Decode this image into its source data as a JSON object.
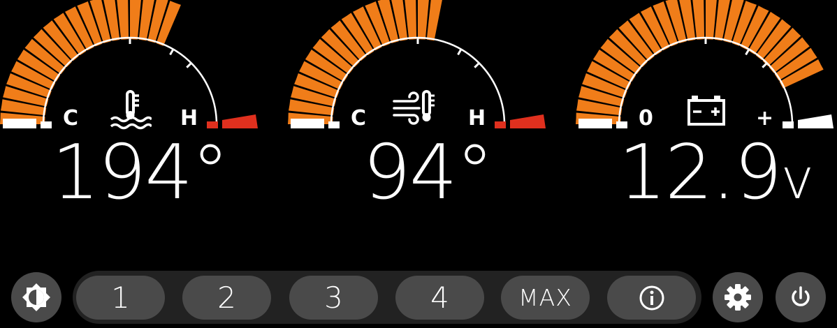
{
  "gauges": [
    {
      "name": "coolant-temperature",
      "icon": "coolant-temperature-icon",
      "left_label": "C",
      "right_label": "H",
      "value": "194",
      "unit": "°",
      "level": 0.62,
      "right_zone_color": "#e0301e"
    },
    {
      "name": "intake-air-temperature",
      "icon": "air-temperature-icon",
      "left_label": "C",
      "right_label": "H",
      "value": "94",
      "unit": "°",
      "level": 0.54,
      "right_zone_color": "#e0301e"
    },
    {
      "name": "battery-voltage",
      "icon": "battery-icon",
      "left_label": "0",
      "right_label": "+",
      "value": "12.9",
      "unit": "v",
      "level": 0.86,
      "right_zone_color": "#ffffff"
    }
  ],
  "colors": {
    "fill": "#f07d19",
    "background": "#000000",
    "button": "#4a4a4a",
    "track": "#222222"
  },
  "bottom_bar": {
    "brightness_icon": "brightness-icon",
    "presets": [
      {
        "label": "1"
      },
      {
        "label": "2"
      },
      {
        "label": "3"
      },
      {
        "label": "4"
      },
      {
        "label": "MAX"
      }
    ],
    "info_icon": "info-icon",
    "settings_icon": "gear-icon",
    "power_icon": "power-icon"
  }
}
